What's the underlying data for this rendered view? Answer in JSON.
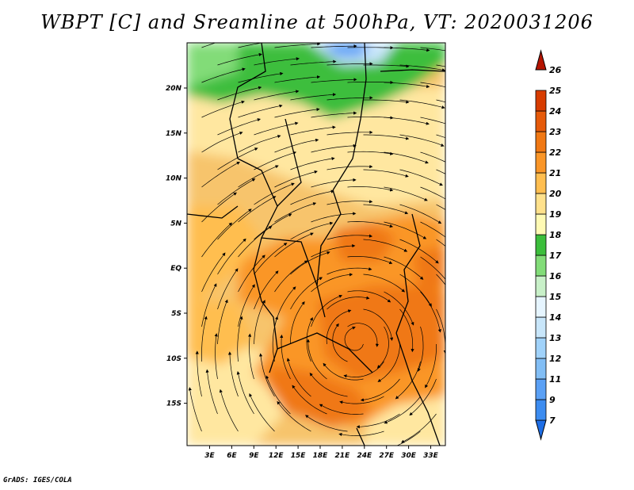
{
  "chart_data": {
    "type": "heatmap",
    "title": "WBPT [C] and Sreamline at 500hPa, VT: 2020031206",
    "x_ticks": [
      "3E",
      "6E",
      "9E",
      "12E",
      "15E",
      "18E",
      "21E",
      "24E",
      "27E",
      "30E",
      "33E"
    ],
    "y_ticks": [
      "20N",
      "15N",
      "10N",
      "5N",
      "EQ",
      "5S",
      "10S",
      "15S"
    ],
    "xlim": [
      0,
      35
    ],
    "ylim": [
      -20,
      24
    ],
    "colorbar": {
      "levels": [
        "7",
        "9",
        "11",
        "12",
        "13",
        "14",
        "15",
        "16",
        "17",
        "18",
        "19",
        "20",
        "21",
        "22",
        "23",
        "24",
        "25",
        "26"
      ],
      "colors": [
        "#1e6ee6",
        "#3c8cf0",
        "#5aa0f5",
        "#82bef5",
        "#a0d2fa",
        "#c8e6fa",
        "#e6f5ff",
        "#c8f0c8",
        "#82dc78",
        "#3cbe3c",
        "#fffab4",
        "#ffe18c",
        "#ffbe50",
        "#fa9628",
        "#f07814",
        "#e65a0a",
        "#d73c00",
        "#b41400"
      ]
    },
    "credit": "GrADS: IGES/COLA"
  }
}
